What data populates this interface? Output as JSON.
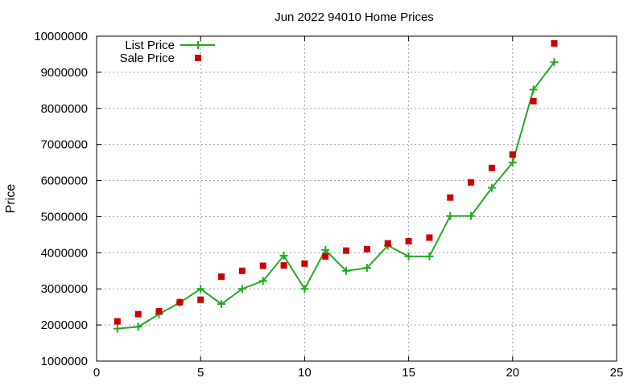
{
  "chart_data": {
    "type": "line",
    "title": "Jun 2022 94010 Home Prices",
    "xlabel": "",
    "ylabel": "Price",
    "xlim": [
      0,
      25
    ],
    "ylim": [
      1000000,
      10000000
    ],
    "xticks": [
      0,
      5,
      10,
      15,
      20,
      25
    ],
    "yticks": [
      1000000,
      2000000,
      3000000,
      4000000,
      5000000,
      6000000,
      7000000,
      8000000,
      9000000,
      10000000
    ],
    "grid": true,
    "legend_position": "top-left",
    "series": [
      {
        "name": "List Price",
        "style": "line-plus",
        "color": "#22aa22",
        "x": [
          1,
          2,
          3,
          4,
          5,
          6,
          7,
          8,
          9,
          10,
          11,
          12,
          13,
          14,
          15,
          16,
          17,
          18,
          19,
          20,
          21,
          22
        ],
        "y": [
          1900000,
          1950000,
          2300000,
          2620000,
          3000000,
          2580000,
          3000000,
          3220000,
          3920000,
          3000000,
          4080000,
          3500000,
          3580000,
          4200000,
          3900000,
          3900000,
          5020000,
          5020000,
          5800000,
          6500000,
          8520000,
          9280000
        ]
      },
      {
        "name": "Sale Price",
        "style": "square",
        "color": "#cc0000",
        "x": [
          1,
          2,
          3,
          4,
          5,
          6,
          7,
          8,
          9,
          10,
          11,
          12,
          13,
          14,
          15,
          16,
          17,
          18,
          19,
          20,
          21,
          22
        ],
        "y": [
          2100000,
          2300000,
          2380000,
          2630000,
          2700000,
          3340000,
          3500000,
          3640000,
          3650000,
          3700000,
          3900000,
          4060000,
          4100000,
          4260000,
          4320000,
          4420000,
          5530000,
          5950000,
          6350000,
          6720000,
          8200000,
          9800000
        ]
      }
    ]
  }
}
